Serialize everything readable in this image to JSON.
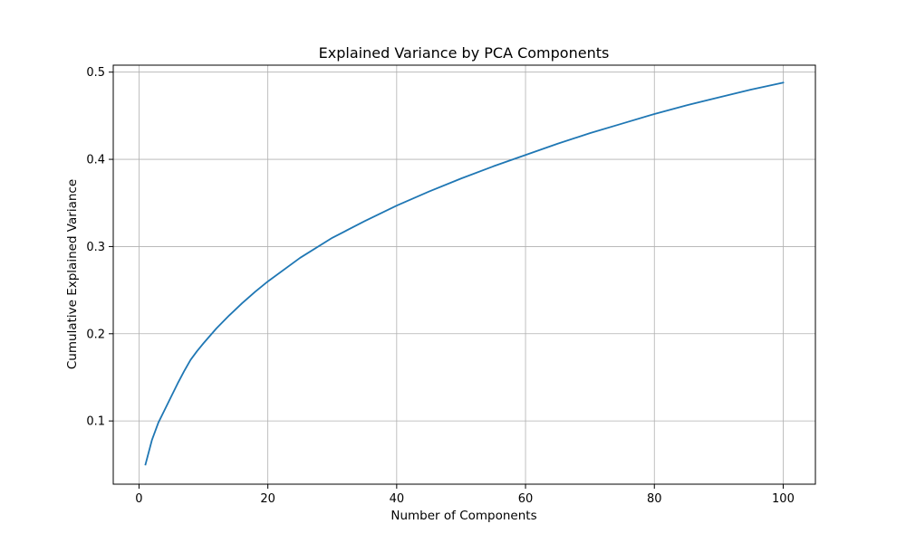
{
  "chart_data": {
    "type": "line",
    "title": "Explained Variance by PCA Components",
    "xlabel": "Number of Components",
    "ylabel": "Cumulative Explained Variance",
    "xlim": [
      -4.0,
      105.0
    ],
    "ylim": [
      0.0275,
      0.508
    ],
    "xticks": [
      0,
      20,
      40,
      60,
      80,
      100
    ],
    "xtick_labels": [
      "0",
      "20",
      "40",
      "60",
      "80",
      "100"
    ],
    "yticks": [
      0.1,
      0.2,
      0.3,
      0.4,
      0.5
    ],
    "ytick_labels": [
      "0.1",
      "0.2",
      "0.3",
      "0.4",
      "0.5"
    ],
    "grid": true,
    "legend": "none",
    "series": [
      {
        "color": "#1f77b4",
        "x": [
          1,
          2,
          3,
          4,
          5,
          6,
          7,
          8,
          9,
          10,
          12,
          14,
          16,
          18,
          20,
          25,
          30,
          35,
          40,
          45,
          50,
          55,
          60,
          65,
          70,
          75,
          80,
          85,
          90,
          95,
          100
        ],
        "y": [
          0.05,
          0.078,
          0.098,
          0.113,
          0.128,
          0.143,
          0.157,
          0.17,
          0.18,
          0.189,
          0.206,
          0.221,
          0.235,
          0.248,
          0.26,
          0.287,
          0.31,
          0.329,
          0.347,
          0.363,
          0.378,
          0.392,
          0.405,
          0.418,
          0.43,
          0.441,
          0.452,
          0.462,
          0.471,
          0.48,
          0.488
        ]
      }
    ]
  },
  "colors": {
    "background": "#ffffff",
    "grid": "#b0b0b0",
    "axes": "#000000",
    "line": "#1f77b4"
  }
}
